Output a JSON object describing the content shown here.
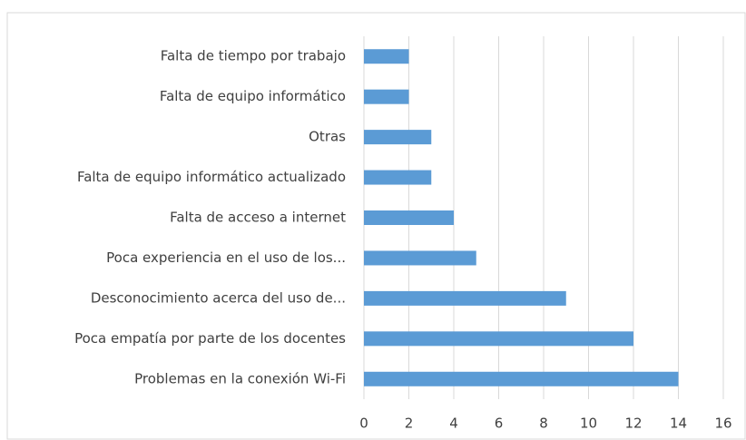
{
  "chart_data": {
    "type": "bar",
    "orientation": "horizontal",
    "categories": [
      "Falta de tiempo por trabajo",
      "Falta de equipo informático",
      "Otras",
      "Falta de equipo informático actualizado",
      "Falta de acceso a internet",
      "Poca experiencia en el uso de los...",
      "Desconocimiento acerca del uso de...",
      "Poca empatía por parte de los docentes",
      "Problemas en la conexión Wi-Fi"
    ],
    "values": [
      2,
      2,
      3,
      3,
      4,
      5,
      9,
      12,
      14
    ],
    "color": "#5b9bd5",
    "xlim": [
      0,
      16
    ],
    "xticks": [
      0,
      2,
      4,
      6,
      8,
      10,
      12,
      14,
      16
    ],
    "grid": true
  }
}
